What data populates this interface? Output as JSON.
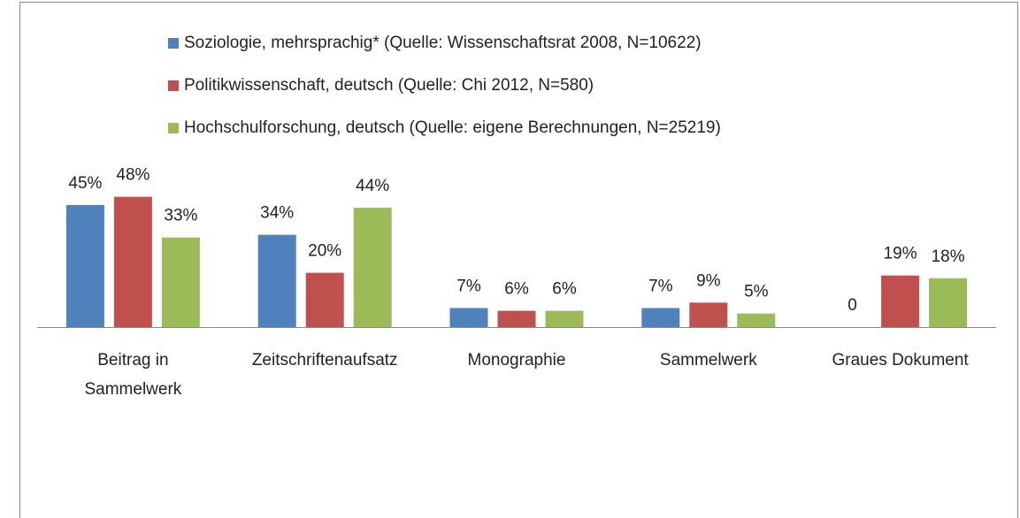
{
  "chart_data": {
    "type": "bar",
    "categories": [
      "Beitrag in Sammelwerk",
      "Zeitschriftenaufsatz",
      "Monographie",
      "Sammelwerk",
      "Graues Dokument"
    ],
    "series": [
      {
        "name": "Soziologie, mehrsprachig* (Quelle: Wissenschaftsrat 2008, N=10622)",
        "color": "#4f81bd",
        "values": [
          45,
          34,
          7,
          7,
          0
        ],
        "value_labels": [
          "45%",
          "34%",
          "7%",
          "7%",
          "0"
        ]
      },
      {
        "name": "Politikwissenschaft, deutsch (Quelle: Chi 2012, N=580)",
        "color": "#c0504d",
        "values": [
          48,
          20,
          6,
          9,
          19
        ],
        "value_labels": [
          "48%",
          "20%",
          "6%",
          "9%",
          "19%"
        ]
      },
      {
        "name": "Hochschulforschung, deutsch (Quelle: eigene Berechnungen, N=25219)",
        "color": "#9bbb59",
        "values": [
          33,
          44,
          6,
          5,
          18
        ],
        "value_labels": [
          "33%",
          "44%",
          "6%",
          "5%",
          "18%"
        ]
      }
    ],
    "legend": "top"
  }
}
